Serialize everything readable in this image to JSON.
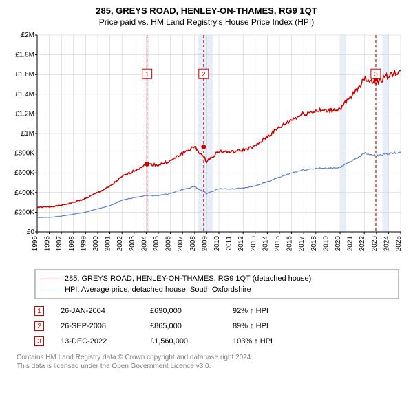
{
  "title": "285, GREYS ROAD, HENLEY-ON-THAMES, RG9 1QT",
  "subtitle": "Price paid vs. HM Land Registry's House Price Index (HPI)",
  "chart": {
    "type": "line",
    "background_color": "#ffffff",
    "grid_color": "#c8c8c8",
    "axis_color": "#000000",
    "tick_fontsize": 10,
    "x_range_years": [
      1995,
      2025
    ],
    "years": [
      1995,
      1996,
      1997,
      1998,
      1999,
      2000,
      2001,
      2002,
      2003,
      2004,
      2005,
      2006,
      2007,
      2008,
      2009,
      2010,
      2011,
      2012,
      2013,
      2014,
      2015,
      2016,
      2017,
      2018,
      2019,
      2020,
      2021,
      2022,
      2023,
      2024,
      2025
    ],
    "ylim": [
      0,
      2000000
    ],
    "ytick_step": 200000,
    "ylabels": [
      "£0",
      "£200K",
      "£400K",
      "£600K",
      "£800K",
      "£1M",
      "£1.2M",
      "£1.4M",
      "£1.6M",
      "£1.8M",
      "£2M"
    ],
    "band_color": "#e8eef8",
    "recession_bands": [
      [
        2004.0,
        2004.2
      ],
      [
        2008.3,
        2009.5
      ],
      [
        2020.1,
        2020.5
      ],
      [
        2023.5,
        2024.0
      ]
    ],
    "series_a": {
      "label": "285, GREYS ROAD, HENLEY-ON-THAMES, RG9 1QT (detached house)",
      "color": "#cc0000",
      "width": 1.6,
      "values_by_year": {
        "1995": 250000,
        "1996": 255000,
        "1997": 270000,
        "1998": 300000,
        "1999": 340000,
        "2000": 400000,
        "2001": 460000,
        "2002": 560000,
        "2003": 620000,
        "2004": 690000,
        "2005": 680000,
        "2006": 720000,
        "2007": 800000,
        "2008": 865000,
        "2009": 720000,
        "2010": 820000,
        "2011": 810000,
        "2012": 830000,
        "2013": 870000,
        "2014": 970000,
        "2015": 1060000,
        "2016": 1140000,
        "2017": 1200000,
        "2018": 1230000,
        "2019": 1230000,
        "2020": 1250000,
        "2021": 1380000,
        "2022": 1560000,
        "2023": 1520000,
        "2024": 1590000,
        "2025": 1640000
      }
    },
    "series_b": {
      "label": "HPI: Average price, detached house, South Oxfordshire",
      "color": "#5b7fc7",
      "width": 1.2,
      "values_by_year": {
        "1995": 145000,
        "1996": 148000,
        "1997": 160000,
        "1998": 180000,
        "1999": 200000,
        "2000": 235000,
        "2001": 265000,
        "2002": 320000,
        "2003": 350000,
        "2004": 370000,
        "2005": 370000,
        "2006": 390000,
        "2007": 430000,
        "2008": 460000,
        "2009": 390000,
        "2010": 440000,
        "2011": 435000,
        "2012": 445000,
        "2013": 465000,
        "2014": 510000,
        "2015": 555000,
        "2016": 600000,
        "2017": 630000,
        "2018": 645000,
        "2019": 645000,
        "2020": 655000,
        "2021": 720000,
        "2022": 800000,
        "2023": 775000,
        "2024": 795000,
        "2025": 810000
      }
    },
    "markers": [
      {
        "n": "1",
        "year": 2004.07,
        "price": 690000
      },
      {
        "n": "2",
        "year": 2008.74,
        "price": 865000
      },
      {
        "n": "3",
        "year": 2022.95,
        "price": 1560000
      }
    ],
    "marker_flag_y": 1600000,
    "marker_color": "#cc0000",
    "vline_dash": "4,3"
  },
  "legend": {
    "a": "285, GREYS ROAD, HENLEY-ON-THAMES, RG9 1QT (detached house)",
    "b": "HPI: Average price, detached house, South Oxfordshire"
  },
  "transactions": [
    {
      "n": "1",
      "date": "26-JAN-2004",
      "price": "£690,000",
      "pct": "92% ↑ HPI"
    },
    {
      "n": "2",
      "date": "26-SEP-2008",
      "price": "£865,000",
      "pct": "89% ↑ HPI"
    },
    {
      "n": "3",
      "date": "13-DEC-2022",
      "price": "£1,560,000",
      "pct": "103% ↑ HPI"
    }
  ],
  "footer1": "Contains HM Land Registry data © Crown copyright and database right 2024.",
  "footer2": "This data is licensed under the Open Government Licence v3.0."
}
